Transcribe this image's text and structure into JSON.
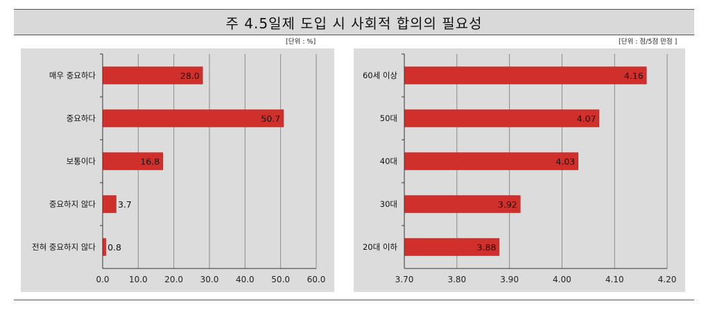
{
  "header": {
    "title": "주 4.5일제 도입 시 사회적 합의의 필요성"
  },
  "colors": {
    "bar": "#d0302c",
    "bar_edge": "#b52420",
    "panel": "#dcdcdc",
    "grid": "#8a8a8a"
  },
  "chart_data": [
    {
      "type": "bar",
      "orientation": "horizontal",
      "unit_label": "[단위 : %]",
      "categories": [
        "매우 중요하다",
        "중요하다",
        "보통이다",
        "중요하지 않다",
        "전혀 중요하지 않다"
      ],
      "values": [
        28.0,
        50.7,
        16.8,
        3.7,
        0.8
      ],
      "value_labels": [
        "28.0",
        "50.7",
        "16.8",
        "3.7",
        "0.8"
      ],
      "xlim": [
        0,
        60
      ],
      "x_ticks": [
        "0.0",
        "10.0",
        "20.0",
        "30.0",
        "40.0",
        "50.0",
        "60.0"
      ],
      "grid": true
    },
    {
      "type": "bar",
      "orientation": "horizontal",
      "unit_label": "[단위 : 점/5점 만점 ]",
      "categories": [
        "60세 이상",
        "50대",
        "40대",
        "30대",
        "20대 이하"
      ],
      "values": [
        4.16,
        4.07,
        4.03,
        3.92,
        3.88
      ],
      "value_labels": [
        "4.16",
        "4.07",
        "4.03",
        "3.92",
        "3.88"
      ],
      "xlim": [
        3.7,
        4.2
      ],
      "x_ticks": [
        "3.70",
        "3.80",
        "3.90",
        "4.00",
        "4.10",
        "4.20"
      ],
      "grid": true
    }
  ]
}
